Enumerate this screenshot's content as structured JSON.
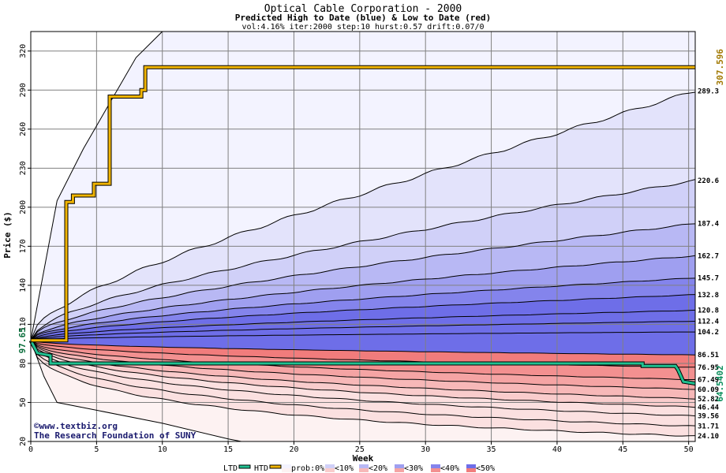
{
  "chart_data": {
    "type": "area",
    "title": "Optical Cable Corporation - 2000",
    "subtitle": "Predicted High to Date (blue) &  Low to Date (red)",
    "params": "vol:4.16% iter:2000 step:10 hurst:0.57 drift:0.07/0",
    "xlabel": "Week",
    "ylabel": "Price ($)",
    "xlim": [
      0,
      50.5
    ],
    "ylim": [
      20,
      335
    ],
    "xticks": [
      0,
      5,
      10,
      15,
      20,
      25,
      30,
      35,
      40,
      45,
      50
    ],
    "yticks": [
      20,
      50,
      80,
      110,
      140,
      170,
      200,
      230,
      260,
      290,
      320
    ],
    "grid": true,
    "start_price": 97.65,
    "start_label": "97.65",
    "high_quantiles": [
      {
        "end": 104.2,
        "label": "104.2"
      },
      {
        "end": 112.4,
        "label": "112.4"
      },
      {
        "end": 120.8,
        "label": "120.8"
      },
      {
        "end": 132.8,
        "label": "132.8"
      },
      {
        "end": 145.7,
        "label": "145.7"
      },
      {
        "end": 162.7,
        "label": "162.7"
      },
      {
        "end": 187.4,
        "label": "187.4"
      },
      {
        "end": 220.6,
        "label": "220.6"
      },
      {
        "end": 289.3,
        "label": "289.3"
      }
    ],
    "high_max_envelope": {
      "x": [
        0,
        2,
        4,
        6,
        8,
        10
      ],
      "y": [
        97.65,
        205,
        245,
        280,
        315,
        335
      ]
    },
    "low_quantiles": [
      {
        "end": 86.51,
        "label": "86.51"
      },
      {
        "end": 76.95,
        "label": "76.95"
      },
      {
        "end": 67.49,
        "label": "67.49"
      },
      {
        "end": 60.09,
        "label": "60.09"
      },
      {
        "end": 52.82,
        "label": "52.82"
      },
      {
        "end": 46.44,
        "label": "46.44"
      },
      {
        "end": 39.56,
        "label": "39.56"
      },
      {
        "end": 31.71,
        "label": "31.71"
      },
      {
        "end": 24.1,
        "label": "24.10"
      }
    ],
    "low_min_envelope": {
      "x": [
        0,
        1,
        2,
        5,
        10,
        15,
        16
      ],
      "y": [
        97.65,
        70,
        50,
        44,
        34,
        22,
        20
      ]
    },
    "htd_series": {
      "name": "HTD",
      "x": [
        0,
        2.7,
        2.7,
        3.2,
        3.2,
        4.8,
        4.8,
        6.0,
        6.0,
        8.4,
        8.4,
        8.7,
        8.7,
        50.5
      ],
      "y": [
        97.65,
        97.65,
        204,
        204,
        209,
        209,
        218,
        218,
        285,
        285,
        290,
        290,
        307.6,
        307.6
      ],
      "end_label": "307.596",
      "color": "#f0b400"
    },
    "ltd_series": {
      "name": "LTD",
      "x": [
        0,
        0.5,
        1.5,
        1.5,
        46.5,
        46.5,
        49,
        49.2,
        49.6,
        50.5
      ],
      "y": [
        97.65,
        88,
        86,
        80,
        80,
        78,
        78,
        75,
        66,
        64.5
      ],
      "end_label": "64.5402",
      "color": "#20c090"
    },
    "legend": {
      "items": [
        "LTD",
        "HTD",
        "prob:0%",
        "<10%",
        "<20%",
        "<30%",
        "<40%",
        "<50%"
      ],
      "placement": "bottom"
    },
    "band_colors_blue": [
      "#f3f3ff",
      "#e3e3fb",
      "#d0d0f8",
      "#b8b8f4",
      "#9f9ff0",
      "#8484ec",
      "#6e6ee8"
    ],
    "band_colors_red": [
      "#fdf2f2",
      "#fbe0e0",
      "#f9cccc",
      "#f7b8b8",
      "#f5a4a4",
      "#f39090",
      "#f17c7c"
    ]
  },
  "footer": {
    "line1": "©www.textbiz.org",
    "line2": "The Research Foundation of SUNY"
  }
}
